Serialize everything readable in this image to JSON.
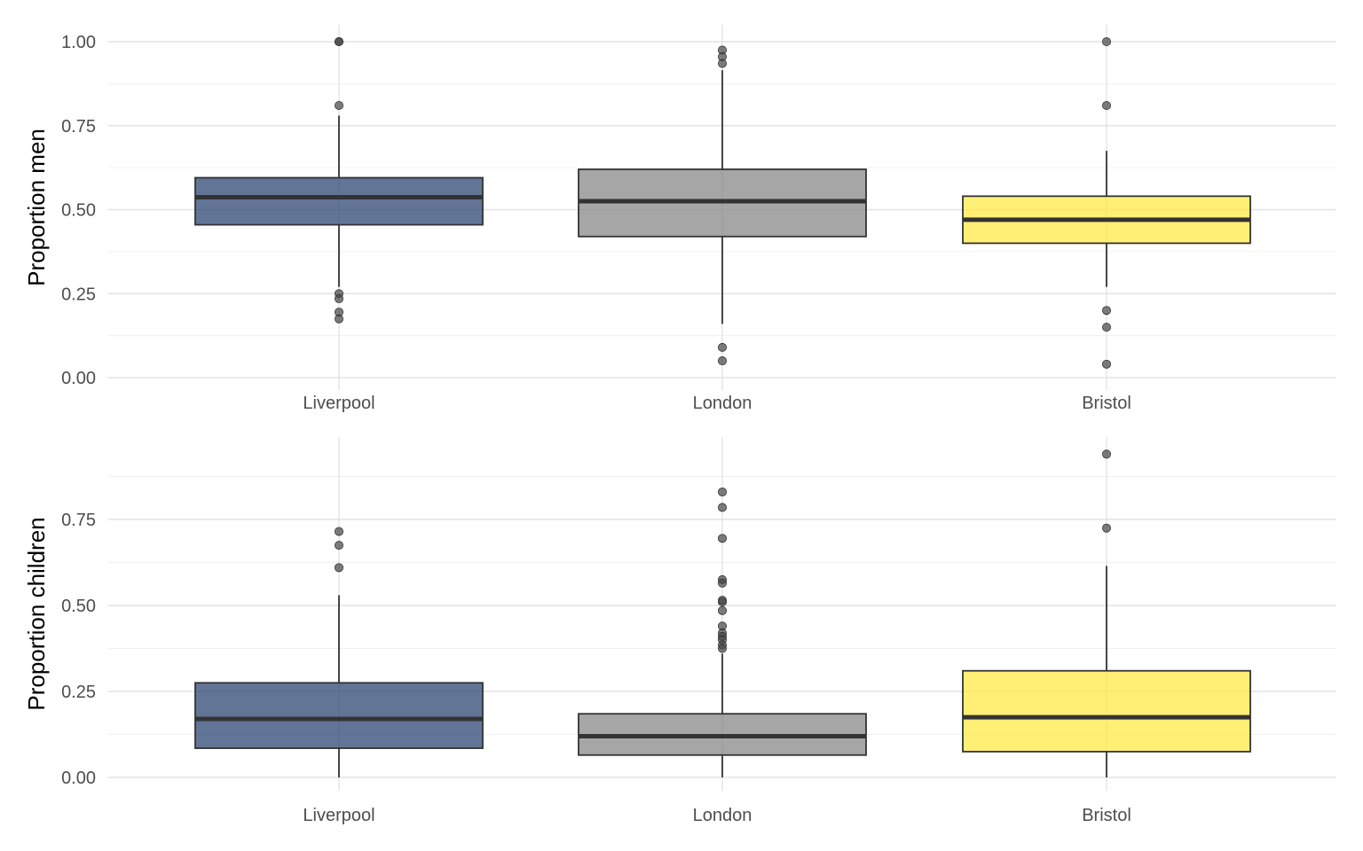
{
  "chart_data": [
    {
      "type": "box",
      "ylabel": "Proportion men",
      "xlabel": "",
      "ylim": [
        0,
        1.0
      ],
      "y_ticks": [
        "0.00",
        "0.25",
        "0.50",
        "0.75",
        "1.00"
      ],
      "categories": [
        "Liverpool",
        "London",
        "Bristol"
      ],
      "grid": true,
      "boxes": [
        {
          "category": "Liverpool",
          "color": "#1f3b6b",
          "whisker_low": 0.27,
          "q1": 0.455,
          "median": 0.537,
          "q3": 0.595,
          "whisker_high": 0.78,
          "outliers": [
            1.0,
            1.0,
            0.81,
            0.25,
            0.235,
            0.195,
            0.175
          ]
        },
        {
          "category": "London",
          "color": "#808080",
          "whisker_low": 0.16,
          "q1": 0.42,
          "median": 0.525,
          "q3": 0.62,
          "whisker_high": 0.915,
          "outliers": [
            0.975,
            0.955,
            0.935,
            0.09,
            0.05
          ]
        },
        {
          "category": "Bristol",
          "color": "#ffe83a",
          "whisker_low": 0.27,
          "q1": 0.4,
          "median": 0.47,
          "q3": 0.54,
          "whisker_high": 0.675,
          "outliers": [
            1.0,
            0.81,
            0.2,
            0.15,
            0.04
          ]
        }
      ]
    },
    {
      "type": "box",
      "ylabel": "Proportion children",
      "xlabel": "",
      "ylim": [
        0,
        0.97
      ],
      "y_ticks": [
        "0.00",
        "0.25",
        "0.50",
        "0.75"
      ],
      "categories": [
        "Liverpool",
        "London",
        "Bristol"
      ],
      "grid": true,
      "boxes": [
        {
          "category": "Liverpool",
          "color": "#1f3b6b",
          "whisker_low": 0.0,
          "q1": 0.085,
          "median": 0.17,
          "q3": 0.275,
          "whisker_high": 0.53,
          "outliers": [
            0.715,
            0.675,
            0.61
          ]
        },
        {
          "category": "London",
          "color": "#808080",
          "whisker_low": 0.0,
          "q1": 0.065,
          "median": 0.12,
          "q3": 0.185,
          "whisker_high": 0.36,
          "outliers": [
            0.83,
            0.785,
            0.695,
            0.575,
            0.565,
            0.515,
            0.51,
            0.485,
            0.44,
            0.42,
            0.41,
            0.4,
            0.385,
            0.375
          ]
        },
        {
          "category": "Bristol",
          "color": "#ffe83a",
          "whisker_low": 0.0,
          "q1": 0.075,
          "median": 0.175,
          "q3": 0.31,
          "whisker_high": 0.615,
          "outliers": [
            0.94,
            0.725
          ]
        }
      ]
    }
  ]
}
